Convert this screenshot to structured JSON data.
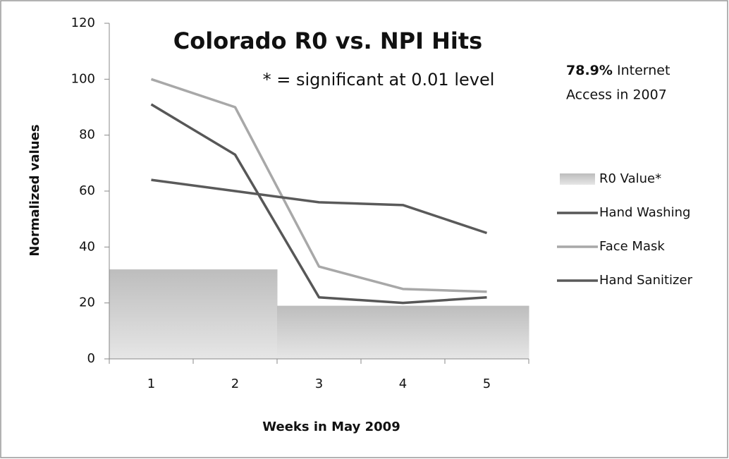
{
  "chart_data": {
    "type": "line",
    "title": "Colorado R0 vs. NPI Hits",
    "annotations": [
      "* = significant at 0.01 level",
      "78.9%",
      "Internet",
      "Access in 2007"
    ],
    "x_label": "Weeks in May 2009",
    "y_label": "Normalized values",
    "categories": [
      "1",
      "2",
      "3",
      "4",
      "5"
    ],
    "ylim": [
      0,
      120
    ],
    "yticks": [
      0,
      20,
      40,
      60,
      80,
      100,
      120
    ],
    "series": [
      {
        "name": "R0 Value*",
        "type": "bar",
        "color": "#c8c8c8",
        "values": [
          32,
          32,
          19,
          19,
          19
        ]
      },
      {
        "name": "Hand Washing",
        "type": "line",
        "color": "#575757",
        "values": [
          91,
          73,
          22,
          20,
          22
        ]
      },
      {
        "name": "Face Mask",
        "type": "line",
        "color": "#a8a8a8",
        "values": [
          100,
          90,
          33,
          25,
          24
        ]
      },
      {
        "name": "Hand Sanitizer",
        "type": "line",
        "color": "#5a5a5a",
        "values": [
          64,
          60,
          56,
          55,
          45
        ]
      }
    ]
  }
}
